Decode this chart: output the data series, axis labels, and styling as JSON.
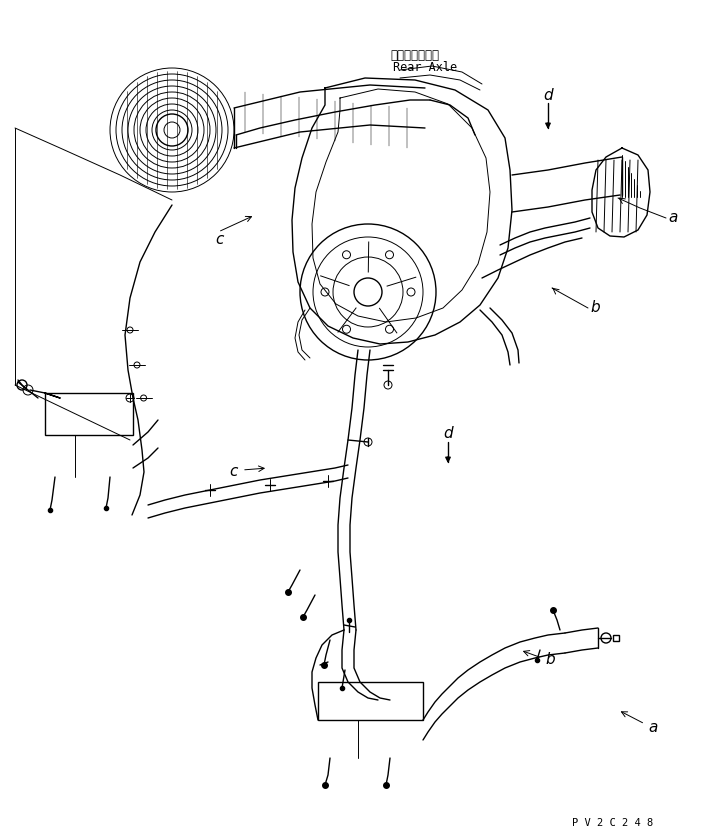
{
  "bg_color": "#ffffff",
  "line_color": "#000000",
  "fig_width": 7.12,
  "fig_height": 8.4,
  "dpi": 100,
  "labels": {
    "rear_axle_jp": "リヤーアクスル",
    "rear_axle_en": "Rear Axle",
    "code": "P V 2 C 2 4 8"
  }
}
